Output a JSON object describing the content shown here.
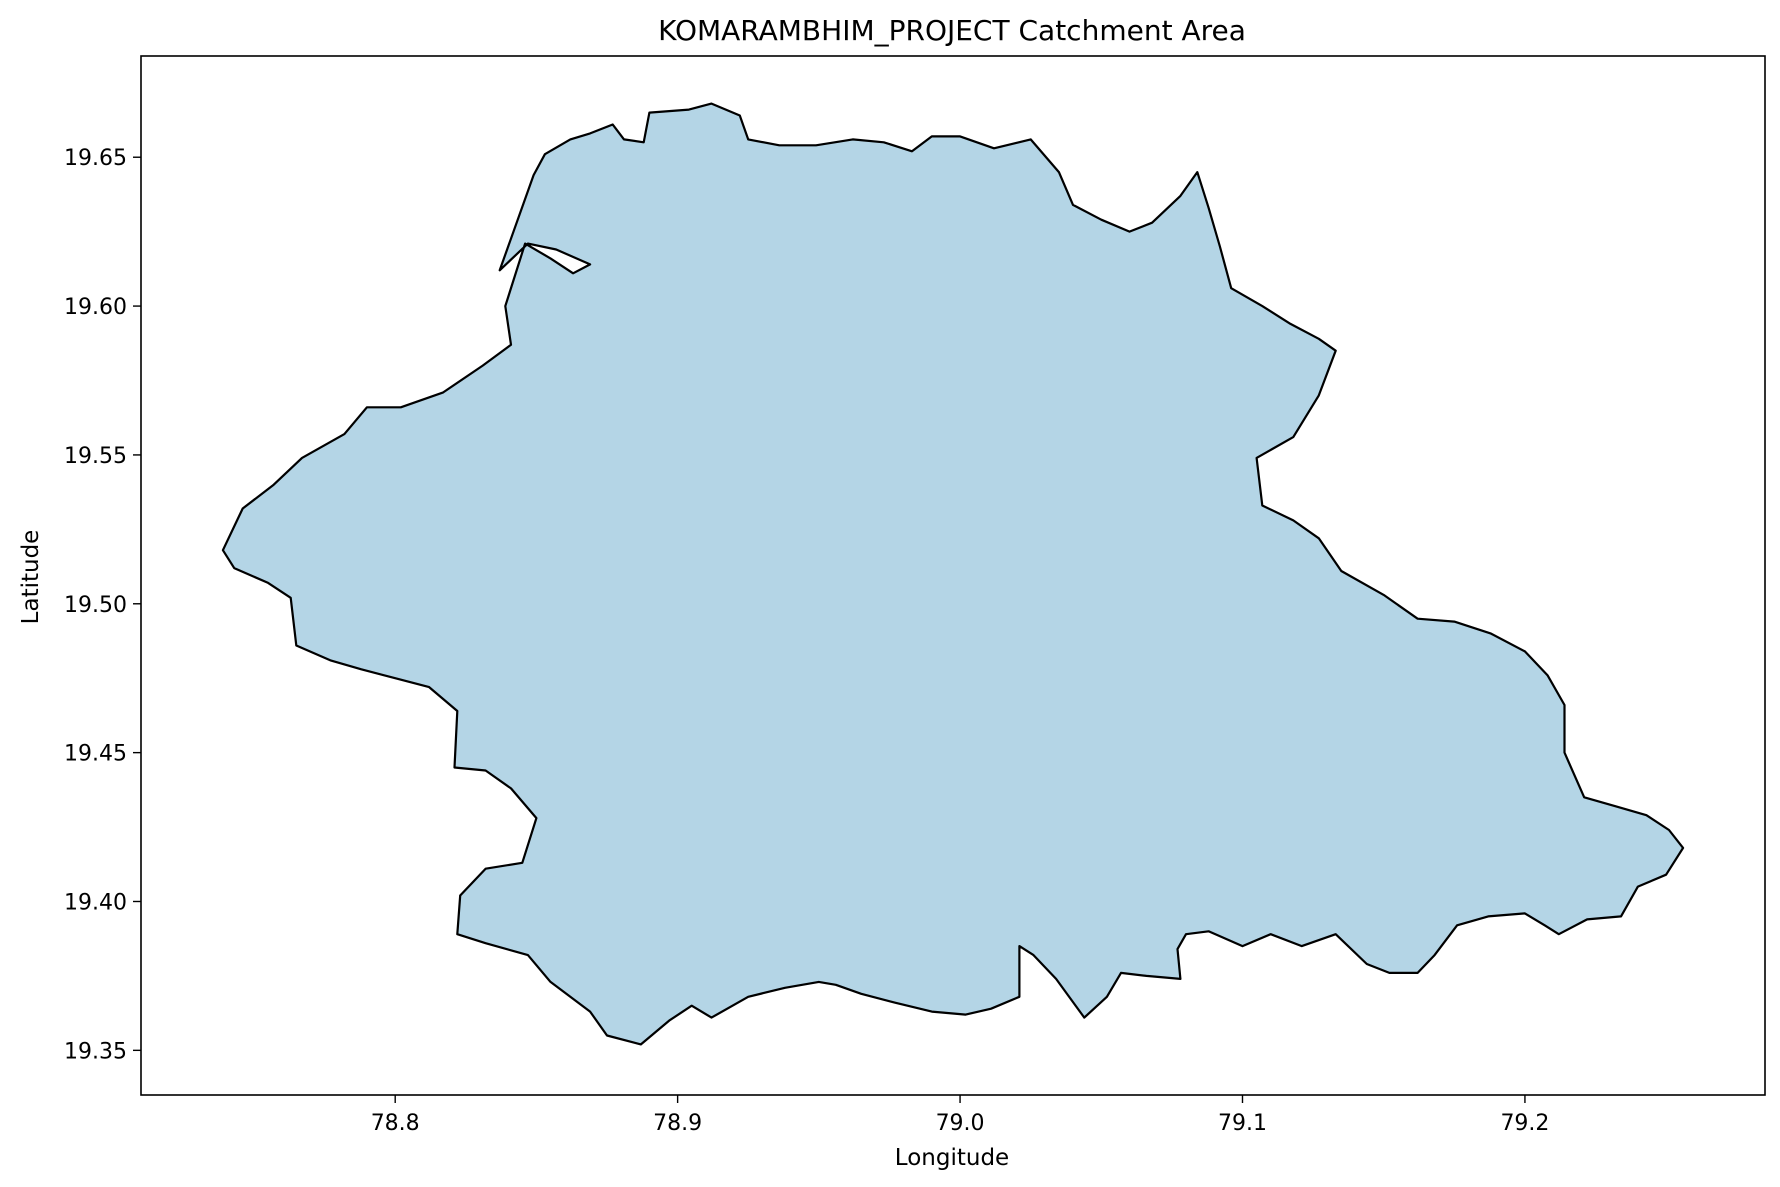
{
  "chart_data": {
    "type": "map",
    "title": "KOMARAMBHIM_PROJECT Catchment Area",
    "xlabel": "Longitude",
    "ylabel": "Latitude",
    "xlim": [
      78.71,
      79.285
    ],
    "ylim": [
      19.335,
      19.684
    ],
    "xticks": [
      78.8,
      78.9,
      79.0,
      79.1,
      79.2
    ],
    "xtick_labels": [
      "78.8",
      "78.9",
      "79.0",
      "79.1",
      "79.2"
    ],
    "yticks": [
      19.35,
      19.4,
      19.45,
      19.5,
      19.55,
      19.6,
      19.65
    ],
    "ytick_labels": [
      "19.35",
      "19.40",
      "19.45",
      "19.50",
      "19.55",
      "19.60",
      "19.65"
    ],
    "grid": false,
    "legend": false,
    "fill_color": "#b4d5e6",
    "edge_color": "#000000",
    "boundary": [
      [
        78.837,
        19.612
      ],
      [
        78.849,
        19.644
      ],
      [
        78.853,
        19.651
      ],
      [
        78.862,
        19.656
      ],
      [
        78.869,
        19.658
      ],
      [
        78.877,
        19.661
      ],
      [
        78.881,
        19.656
      ],
      [
        78.888,
        19.655
      ],
      [
        78.89,
        19.665
      ],
      [
        78.904,
        19.666
      ],
      [
        78.912,
        19.668
      ],
      [
        78.922,
        19.664
      ],
      [
        78.925,
        19.656
      ],
      [
        78.936,
        19.654
      ],
      [
        78.949,
        19.654
      ],
      [
        78.962,
        19.656
      ],
      [
        78.973,
        19.655
      ],
      [
        78.983,
        19.652
      ],
      [
        78.99,
        19.657
      ],
      [
        79.0,
        19.657
      ],
      [
        79.012,
        19.653
      ],
      [
        79.025,
        19.656
      ],
      [
        79.035,
        19.645
      ],
      [
        79.04,
        19.634
      ],
      [
        79.05,
        19.629
      ],
      [
        79.06,
        19.625
      ],
      [
        79.068,
        19.628
      ],
      [
        79.078,
        19.637
      ],
      [
        79.084,
        19.645
      ],
      [
        79.088,
        19.633
      ],
      [
        79.092,
        19.62
      ],
      [
        79.096,
        19.606
      ],
      [
        79.107,
        19.6
      ],
      [
        79.117,
        19.594
      ],
      [
        79.127,
        19.589
      ],
      [
        79.133,
        19.585
      ],
      [
        79.127,
        19.57
      ],
      [
        79.118,
        19.556
      ],
      [
        79.105,
        19.549
      ],
      [
        79.107,
        19.533
      ],
      [
        79.118,
        19.528
      ],
      [
        79.127,
        19.522
      ],
      [
        79.135,
        19.511
      ],
      [
        79.15,
        19.503
      ],
      [
        79.162,
        19.495
      ],
      [
        79.175,
        19.494
      ],
      [
        79.188,
        19.49
      ],
      [
        79.2,
        19.484
      ],
      [
        79.208,
        19.476
      ],
      [
        79.214,
        19.466
      ],
      [
        79.214,
        19.45
      ],
      [
        79.221,
        19.435
      ],
      [
        79.232,
        19.432
      ],
      [
        79.243,
        19.429
      ],
      [
        79.251,
        19.424
      ],
      [
        79.256,
        19.418
      ],
      [
        79.25,
        19.409
      ],
      [
        79.24,
        19.405
      ],
      [
        79.234,
        19.395
      ],
      [
        79.222,
        19.394
      ],
      [
        79.212,
        19.389
      ],
      [
        79.207,
        19.392
      ],
      [
        79.2,
        19.396
      ],
      [
        79.187,
        19.395
      ],
      [
        79.176,
        19.392
      ],
      [
        79.168,
        19.382
      ],
      [
        79.162,
        19.376
      ],
      [
        79.152,
        19.376
      ],
      [
        79.144,
        19.379
      ],
      [
        79.133,
        19.389
      ],
      [
        79.121,
        19.385
      ],
      [
        79.11,
        19.389
      ],
      [
        79.1,
        19.385
      ],
      [
        79.088,
        19.39
      ],
      [
        79.08,
        19.389
      ],
      [
        79.077,
        19.384
      ],
      [
        79.078,
        19.374
      ],
      [
        79.066,
        19.375
      ],
      [
        79.057,
        19.376
      ],
      [
        79.052,
        19.368
      ],
      [
        79.044,
        19.361
      ],
      [
        79.034,
        19.374
      ],
      [
        79.026,
        19.382
      ],
      [
        79.021,
        19.385
      ],
      [
        79.021,
        19.368
      ],
      [
        79.011,
        19.364
      ],
      [
        79.002,
        19.362
      ],
      [
        78.99,
        19.363
      ],
      [
        78.977,
        19.366
      ],
      [
        78.965,
        19.369
      ],
      [
        78.956,
        19.372
      ],
      [
        78.95,
        19.373
      ],
      [
        78.938,
        19.371
      ],
      [
        78.925,
        19.368
      ],
      [
        78.912,
        19.361
      ],
      [
        78.905,
        19.365
      ],
      [
        78.897,
        19.36
      ],
      [
        78.887,
        19.352
      ],
      [
        78.875,
        19.355
      ],
      [
        78.869,
        19.363
      ],
      [
        78.855,
        19.373
      ],
      [
        78.847,
        19.382
      ],
      [
        78.832,
        19.386
      ],
      [
        78.822,
        19.389
      ],
      [
        78.823,
        19.402
      ],
      [
        78.832,
        19.411
      ],
      [
        78.845,
        19.413
      ],
      [
        78.85,
        19.428
      ],
      [
        78.841,
        19.438
      ],
      [
        78.832,
        19.444
      ],
      [
        78.821,
        19.445
      ],
      [
        78.822,
        19.464
      ],
      [
        78.812,
        19.472
      ],
      [
        78.8,
        19.475
      ],
      [
        78.788,
        19.478
      ],
      [
        78.777,
        19.481
      ],
      [
        78.765,
        19.486
      ],
      [
        78.763,
        19.502
      ],
      [
        78.755,
        19.507
      ],
      [
        78.743,
        19.512
      ],
      [
        78.739,
        19.518
      ],
      [
        78.746,
        19.532
      ],
      [
        78.757,
        19.54
      ],
      [
        78.767,
        19.549
      ],
      [
        78.782,
        19.557
      ],
      [
        78.79,
        19.566
      ],
      [
        78.802,
        19.566
      ],
      [
        78.817,
        19.571
      ],
      [
        78.831,
        19.58
      ],
      [
        78.841,
        19.587
      ],
      [
        78.839,
        19.6
      ],
      [
        78.846,
        19.621
      ],
      [
        78.855,
        19.616
      ],
      [
        78.863,
        19.611
      ],
      [
        78.869,
        19.614
      ],
      [
        78.857,
        19.619
      ],
      [
        78.847,
        19.621
      ],
      [
        78.837,
        19.612
      ]
    ]
  }
}
